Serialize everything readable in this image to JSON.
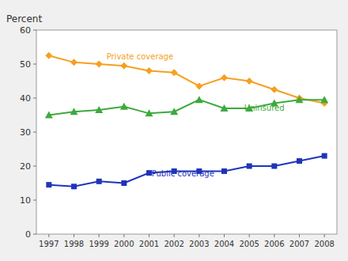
{
  "chart_data": {
    "type": "line",
    "title": "Percent",
    "x": [
      1997,
      1998,
      1999,
      2000,
      2001,
      2002,
      2003,
      2004,
      2005,
      2006,
      2007,
      2008
    ],
    "series": [
      {
        "color": "#F5A020",
        "marker": "diamond",
        "values": [
          52.5,
          50.5,
          50.0,
          49.5,
          48.0,
          47.5,
          43.5,
          46.0,
          45.0,
          42.5,
          40.0,
          38.5
        ]
      },
      {
        "color": "#3DAA3D",
        "marker": "triangle",
        "values": [
          35.0,
          36.0,
          36.5,
          37.5,
          35.5,
          36.0,
          39.5,
          37.0,
          37.0,
          38.5,
          39.5,
          39.5
        ]
      },
      {
        "color": "#1F34BB",
        "marker": "square",
        "values": [
          14.5,
          14.0,
          15.5,
          15.0,
          18.0,
          18.5,
          18.5,
          18.5,
          20.0,
          20.0,
          21.5,
          23.0
        ]
      }
    ],
    "annotations": [
      {
        "text": "Private coverage",
        "x": 1999.3,
        "y": 51.5,
        "color": "#F5A020"
      },
      {
        "text": "Uninsured",
        "x": 2004.8,
        "y": 36.2,
        "color": "#3DAA3D"
      },
      {
        "text": "Public coverage",
        "x": 2001.1,
        "y": 17.0,
        "color": "#1F34BB"
      }
    ],
    "xlim": [
      1996.5,
      2008.5
    ],
    "xticks": [
      1997,
      1998,
      1999,
      2000,
      2001,
      2002,
      2003,
      2004,
      2005,
      2006,
      2007,
      2008
    ],
    "ylim": [
      0,
      60
    ],
    "yticks": [
      0,
      10,
      20,
      30,
      40,
      50,
      60
    ],
    "grid": false
  }
}
